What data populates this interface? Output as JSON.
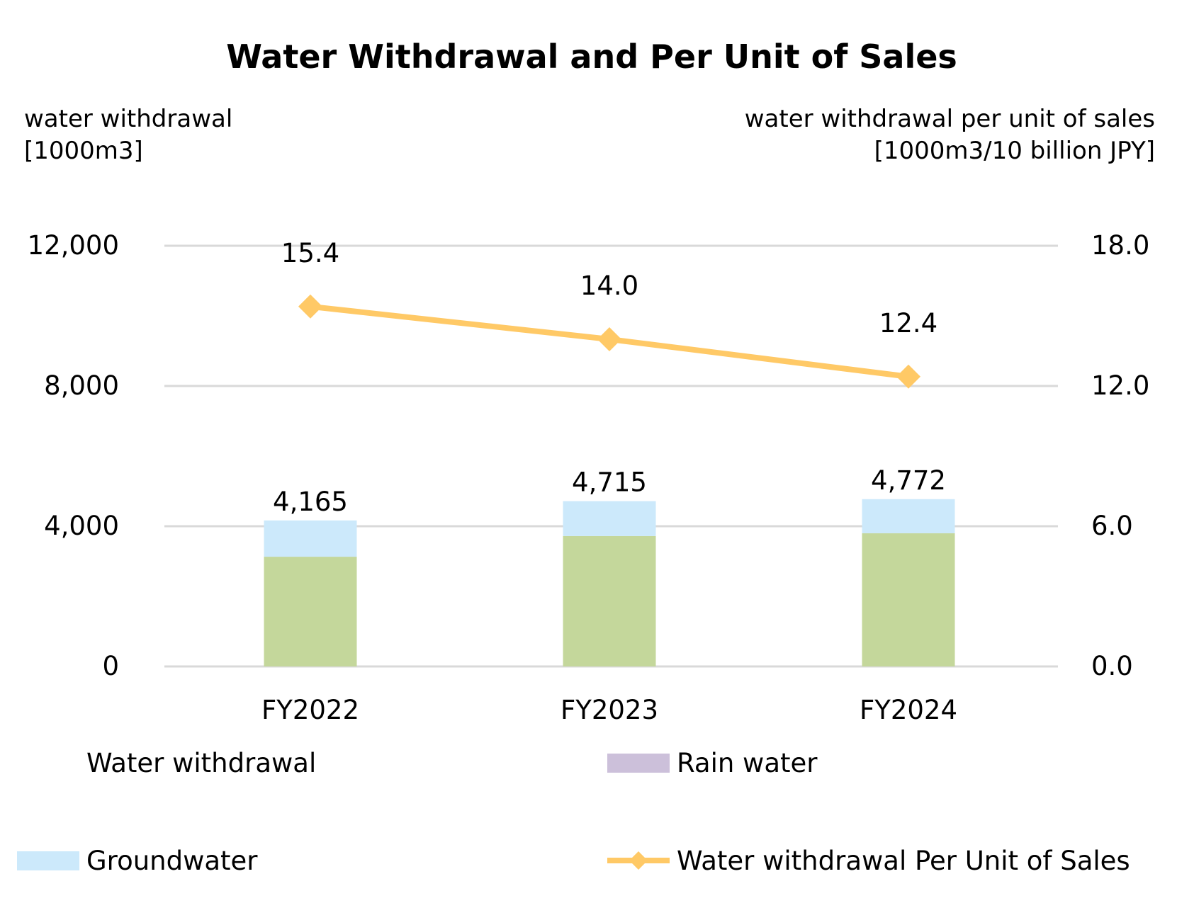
{
  "chart_data": {
    "type": "bar",
    "title": "Water Withdrawal and Per Unit of Sales",
    "y_left_label": [
      "water withdrawal",
      "[1000m3]"
    ],
    "y_right_label": [
      "water withdrawal per unit of sales",
      "[1000m3/10 billion JPY]"
    ],
    "categories": [
      "FY2022",
      "FY2023",
      "FY2024"
    ],
    "y_left": {
      "min": 0,
      "max": 12000,
      "ticks": [
        "0",
        "4,000",
        "8,000",
        "12,000"
      ],
      "tick_values": [
        0,
        4000,
        8000,
        12000
      ]
    },
    "y_right": {
      "min": 0,
      "max": 18,
      "ticks": [
        "0.0",
        "6.0",
        "12.0",
        "18.0"
      ],
      "tick_values": [
        0,
        6,
        12,
        18
      ]
    },
    "grid": true,
    "series": [
      {
        "name": "Water withdrawal",
        "kind": "bar",
        "stack": "main",
        "values": [
          3130,
          3720,
          3800
        ],
        "color": "#c4d79b"
      },
      {
        "name": "Rain water",
        "kind": "bar",
        "stack": "main",
        "values": [
          0,
          0,
          0
        ],
        "color": "#ccc0da"
      },
      {
        "name": "Groundwater",
        "kind": "bar",
        "stack": "main",
        "values": [
          1035,
          995,
          972
        ],
        "color": "#cce9fb"
      },
      {
        "name": "Water withdrawal Per Unit of Sales",
        "kind": "line",
        "axis": "right",
        "values": [
          15.4,
          14.0,
          12.4
        ],
        "color": "#ffc966"
      }
    ],
    "total_labels": [
      "4,165",
      "4,715",
      "4,772"
    ],
    "totals": [
      4165,
      4715,
      4772
    ],
    "line_labels": [
      "15.4",
      "14.0",
      "12.4"
    ],
    "legend": [
      {
        "name": "Water withdrawal",
        "symbol": "none"
      },
      {
        "name": "Rain water",
        "symbol": "box",
        "color": "#ccc0da"
      },
      {
        "name": "Groundwater",
        "symbol": "box",
        "color": "#cce9fb"
      },
      {
        "name": "Water withdrawal Per Unit of Sales",
        "symbol": "line-diamond",
        "color": "#ffc966"
      }
    ],
    "legend_position": "bottom",
    "grid_color": "#d9d9d9"
  }
}
